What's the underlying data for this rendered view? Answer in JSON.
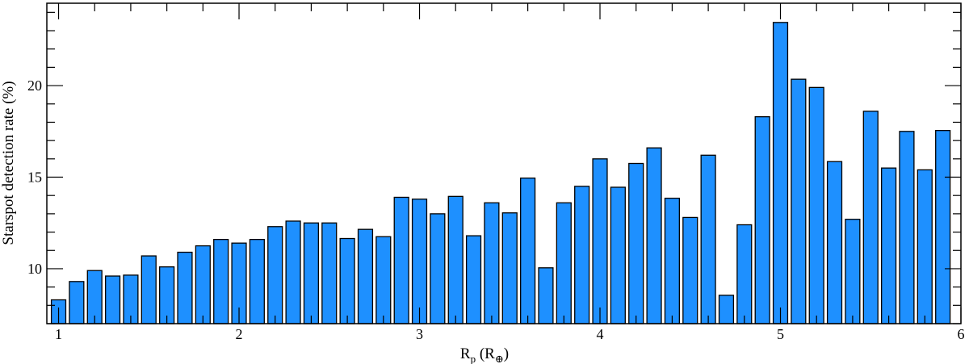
{
  "chart_data": {
    "type": "bar",
    "bar_color": "#1E90FF",
    "x": [
      1.0,
      1.1,
      1.2,
      1.3,
      1.4,
      1.5,
      1.6,
      1.7,
      1.8,
      1.9,
      2.0,
      2.1,
      2.2,
      2.3,
      2.4,
      2.5,
      2.6,
      2.7,
      2.8,
      2.9,
      3.0,
      3.1,
      3.2,
      3.3,
      3.4,
      3.5,
      3.6,
      3.7,
      3.8,
      3.9,
      4.0,
      4.1,
      4.2,
      4.3,
      4.4,
      4.5,
      4.6,
      4.7,
      4.8,
      4.9,
      5.0,
      5.1,
      5.2,
      5.3,
      5.4,
      5.5,
      5.6,
      5.7,
      5.8,
      5.9
    ],
    "values": [
      8.3,
      9.3,
      9.9,
      9.6,
      9.65,
      10.7,
      10.1,
      10.9,
      11.25,
      11.6,
      11.4,
      11.6,
      12.3,
      12.6,
      12.5,
      12.5,
      11.65,
      12.15,
      11.75,
      13.9,
      13.8,
      13.0,
      13.95,
      11.8,
      13.6,
      13.05,
      14.95,
      10.05,
      13.6,
      14.5,
      16.0,
      14.45,
      15.75,
      16.6,
      13.85,
      12.8,
      16.2,
      8.55,
      12.4,
      18.3,
      23.45,
      20.35,
      19.9,
      15.85,
      12.7,
      18.6,
      15.5,
      17.5,
      15.4,
      17.55
    ],
    "xlim": [
      0.935,
      6.0
    ],
    "ylim": [
      7.0,
      24.5
    ],
    "x_ticks": [
      {
        "value": 1,
        "label": "1"
      },
      {
        "value": 2,
        "label": "2"
      },
      {
        "value": 3,
        "label": "3"
      },
      {
        "value": 4,
        "label": "4"
      },
      {
        "value": 5,
        "label": "5"
      },
      {
        "value": 6,
        "label": "6"
      }
    ],
    "y_ticks": [
      {
        "value": 10,
        "label": "10"
      },
      {
        "value": 15,
        "label": "15"
      },
      {
        "value": 20,
        "label": "20"
      }
    ],
    "x_minor_step": 0.2,
    "y_minor_step": 1.0,
    "xlabel": {
      "main": "R",
      "sub": "p",
      "rest": " (R",
      "sub2": "⊕",
      "end": ")"
    },
    "ylabel": "Starspot detection rate (%)",
    "grid": false
  }
}
